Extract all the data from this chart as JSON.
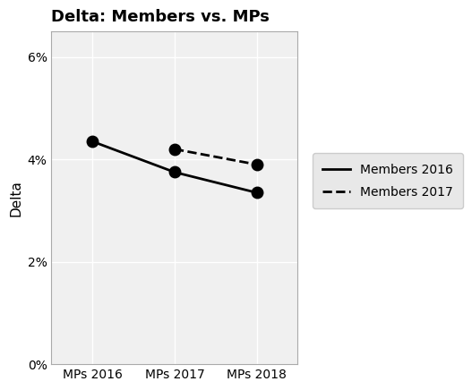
{
  "title": "Delta: Members vs. MPs",
  "ylabel": "Delta",
  "x_labels": [
    "MPs 2016",
    "MPs 2017",
    "MPs 2018"
  ],
  "x_positions": [
    0,
    1,
    2
  ],
  "series": [
    {
      "label": "Members 2016",
      "x": [
        0,
        1,
        2
      ],
      "y": [
        0.0435,
        0.0375,
        0.0335
      ],
      "linestyle": "solid",
      "color": "#000000",
      "linewidth": 2.0,
      "markersize": 9
    },
    {
      "label": "Members 2017",
      "x": [
        1,
        2
      ],
      "y": [
        0.042,
        0.039
      ],
      "linestyle": "dashed",
      "color": "#000000",
      "linewidth": 2.0,
      "markersize": 9
    }
  ],
  "ylim": [
    0.0,
    0.065
  ],
  "yticks": [
    0.0,
    0.02,
    0.04,
    0.06
  ],
  "ytick_labels": [
    "0%",
    "2%",
    "4%",
    "6%"
  ],
  "background_color": "#ffffff",
  "plot_background_color": "#f0f0f0",
  "grid_color": "#ffffff",
  "legend_box_color": "#e8e8e8",
  "title_fontsize": 13,
  "axis_label_fontsize": 11,
  "tick_fontsize": 10,
  "legend_fontsize": 10
}
